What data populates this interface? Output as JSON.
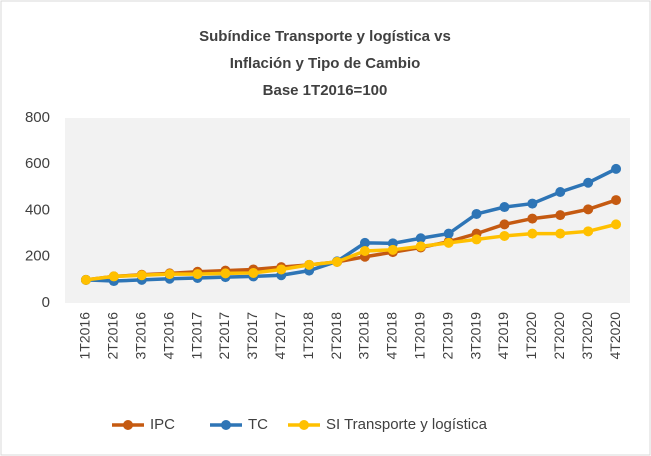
{
  "chart_data": {
    "type": "line",
    "title": [
      "Subíndice Transporte y logística vs",
      "Inflación y Tipo de Cambio",
      "Base 1T2016=100"
    ],
    "categories": [
      "1T2016",
      "2T2016",
      "3T2016",
      "4T2016",
      "1T2017",
      "2T2017",
      "3T2017",
      "4T2017",
      "1T2018",
      "2T2018",
      "3T2018",
      "4T2018",
      "1T2019",
      "2T2019",
      "3T2019",
      "4T2019",
      "1T2020",
      "2T2020",
      "3T2020",
      "4T2020"
    ],
    "series": [
      {
        "name": "IPC",
        "color": "#c55a11",
        "values": [
          100,
          115,
          122,
          128,
          135,
          140,
          145,
          155,
          165,
          178,
          200,
          220,
          240,
          265,
          300,
          340,
          365,
          380,
          405,
          445
        ]
      },
      {
        "name": "TC",
        "color": "#2e75b6",
        "values": [
          100,
          95,
          100,
          105,
          108,
          112,
          115,
          120,
          140,
          180,
          260,
          258,
          280,
          300,
          385,
          415,
          430,
          480,
          520,
          580
        ]
      },
      {
        "name": "SI Transporte y logística",
        "color": "#ffc000",
        "values": [
          100,
          115,
          120,
          125,
          125,
          128,
          130,
          145,
          165,
          178,
          225,
          230,
          245,
          260,
          275,
          290,
          300,
          300,
          310,
          340
        ]
      }
    ],
    "ylim": [
      0,
      800
    ],
    "yticks": [
      0,
      200,
      400,
      600,
      800
    ],
    "grid": false,
    "legend": "bottom"
  }
}
